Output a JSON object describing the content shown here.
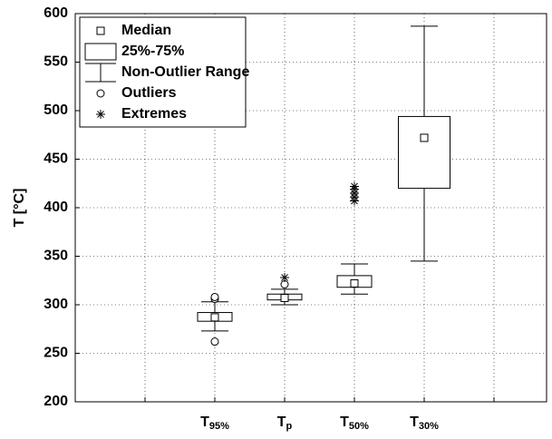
{
  "chart_data": {
    "type": "box",
    "y_label": "T [°C]",
    "categories": [
      "T95%",
      "Tp",
      "T50%",
      "T30%"
    ],
    "boxes": [
      {
        "median": 287,
        "q1": 283,
        "q3": 292,
        "whisker_low": 273,
        "whisker_high": 303,
        "outliers": [
          262,
          306,
          308
        ],
        "extremes": []
      },
      {
        "median": 307,
        "q1": 305,
        "q3": 311,
        "whisker_low": 300,
        "whisker_high": 316,
        "outliers": [
          321
        ],
        "extremes": [
          328
        ]
      },
      {
        "median": 322,
        "q1": 318,
        "q3": 330,
        "whisker_low": 311,
        "whisker_high": 342,
        "outliers": [],
        "extremes": [
          407,
          411,
          415,
          419,
          422
        ]
      },
      {
        "median": 472,
        "q1": 420,
        "q3": 494,
        "whisker_low": 345,
        "whisker_high": 587,
        "outliers": [],
        "extremes": []
      }
    ],
    "legend": [
      "Median",
      "25%-75%",
      "Non-Outlier Range",
      "Outliers",
      "Extremes"
    ],
    "ylim": [
      200,
      600
    ],
    "yticks": [
      200,
      250,
      300,
      350,
      400,
      450,
      500,
      550,
      600
    ],
    "grid": true,
    "color": "#000000"
  }
}
